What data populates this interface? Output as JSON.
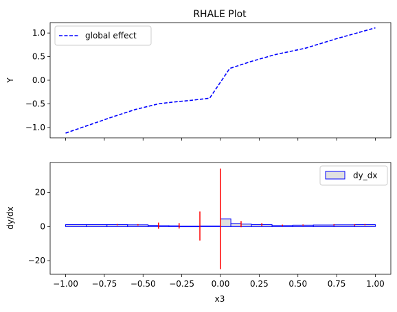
{
  "chart_data": [
    {
      "type": "line",
      "title": "RHALE Plot",
      "xlabel": "",
      "ylabel": "Y",
      "xlim": [
        -1.1,
        1.1
      ],
      "ylim": [
        -1.22,
        1.22
      ],
      "xticks": [
        -1.0,
        -0.75,
        -0.5,
        -0.25,
        0.0,
        0.25,
        0.5,
        0.75,
        1.0
      ],
      "yticks": [
        -1.0,
        -0.5,
        0.0,
        0.5,
        1.0
      ],
      "ytick_labels": [
        "−1.0",
        "−0.5",
        "0.0",
        "0.5",
        "1.0"
      ],
      "legend_position": "upper-left",
      "grid": false,
      "series": [
        {
          "name": "global effect",
          "color": "#0000ff",
          "linestyle": "dashed",
          "x": [
            -1.0,
            -0.85,
            -0.7,
            -0.55,
            -0.4,
            -0.3,
            -0.2,
            -0.07,
            0.06,
            0.2,
            0.35,
            0.55,
            0.75,
            1.0
          ],
          "y": [
            -1.12,
            -0.95,
            -0.78,
            -0.62,
            -0.5,
            -0.46,
            -0.43,
            -0.38,
            0.25,
            0.4,
            0.54,
            0.68,
            0.88,
            1.11
          ]
        }
      ]
    },
    {
      "type": "bar",
      "title": "",
      "xlabel": "x3",
      "ylabel": "dy/dx",
      "xlim": [
        -1.1,
        1.1
      ],
      "ylim": [
        -28.0,
        37.5
      ],
      "xticks": [
        -1.0,
        -0.75,
        -0.5,
        -0.25,
        0.0,
        0.25,
        0.5,
        0.75,
        1.0
      ],
      "xtick_labels": [
        "−1.00",
        "−0.75",
        "−0.50",
        "−0.25",
        "0.00",
        "0.25",
        "0.50",
        "0.75",
        "1.00"
      ],
      "yticks": [
        -20,
        0,
        20
      ],
      "ytick_labels": [
        "−20",
        "0",
        "20"
      ],
      "legend_position": "upper-right",
      "grid": false,
      "bar_fill": "#e0e0e0",
      "bar_edge": "#0000ff",
      "error_color": "#ff0000",
      "series": [
        {
          "name": "dy_dx",
          "bins": [
            {
              "x0": -1.0,
              "x1": -0.867,
              "value": 1.1,
              "err": 0.0
            },
            {
              "x0": -0.867,
              "x1": -0.733,
              "value": 1.1,
              "err": 0.0
            },
            {
              "x0": -0.733,
              "x1": -0.6,
              "value": 1.1,
              "err": 0.4
            },
            {
              "x0": -0.6,
              "x1": -0.467,
              "value": 1.0,
              "err": 0.4
            },
            {
              "x0": -0.467,
              "x1": -0.4,
              "value": 0.7,
              "err": 0.5
            },
            {
              "x0": -0.4,
              "x1": -0.333,
              "value": 0.5,
              "err": 1.8
            },
            {
              "x0": -0.333,
              "x1": -0.267,
              "value": 0.4,
              "err": 1.6
            },
            {
              "x0": -0.267,
              "x1": -0.133,
              "value": 0.2,
              "err": 0.0
            },
            {
              "x0": -0.133,
              "x1": 0.0,
              "value": 0.3,
              "err": 8.5
            },
            {
              "x0": 0.0,
              "x1": 0.067,
              "value": 4.5,
              "err": 29.5
            },
            {
              "x0": 0.067,
              "x1": 0.133,
              "value": 1.8,
              "err": 0.0
            },
            {
              "x0": 0.133,
              "x1": 0.2,
              "value": 1.4,
              "err": 1.8
            },
            {
              "x0": 0.2,
              "x1": 0.333,
              "value": 1.1,
              "err": 0.0
            },
            {
              "x0": 0.333,
              "x1": 0.467,
              "value": 0.6,
              "err": 1.0
            },
            {
              "x0": 0.467,
              "x1": 0.6,
              "value": 0.8,
              "err": 0.6
            },
            {
              "x0": 0.6,
              "x1": 0.733,
              "value": 0.9,
              "err": 0.5
            },
            {
              "x0": 0.733,
              "x1": 0.867,
              "value": 1.0,
              "err": 0.5
            },
            {
              "x0": 0.867,
              "x1": 1.0,
              "value": 1.1,
              "err": 0.5
            }
          ],
          "errorbars": [
            {
              "x": -0.667,
              "center": 1.1,
              "err": 0.4
            },
            {
              "x": -0.533,
              "center": 1.0,
              "err": 0.4
            },
            {
              "x": -0.4,
              "center": 0.5,
              "err": 1.8
            },
            {
              "x": -0.267,
              "center": 0.4,
              "err": 1.6
            },
            {
              "x": -0.133,
              "center": 0.3,
              "err": 8.5
            },
            {
              "x": 0.0,
              "center": 4.5,
              "err": 29.5
            },
            {
              "x": 0.133,
              "center": 1.4,
              "err": 1.8
            },
            {
              "x": 0.267,
              "center": 1.1,
              "err": 0.9
            },
            {
              "x": 0.4,
              "center": 0.6,
              "err": 0.5
            },
            {
              "x": 0.533,
              "center": 0.8,
              "err": 0.4
            },
            {
              "x": 0.733,
              "center": 1.0,
              "err": 0.4
            },
            {
              "x": 0.867,
              "center": 1.0,
              "err": 0.4
            },
            {
              "x": 0.933,
              "center": 1.1,
              "err": 0.4
            }
          ]
        }
      ]
    }
  ]
}
